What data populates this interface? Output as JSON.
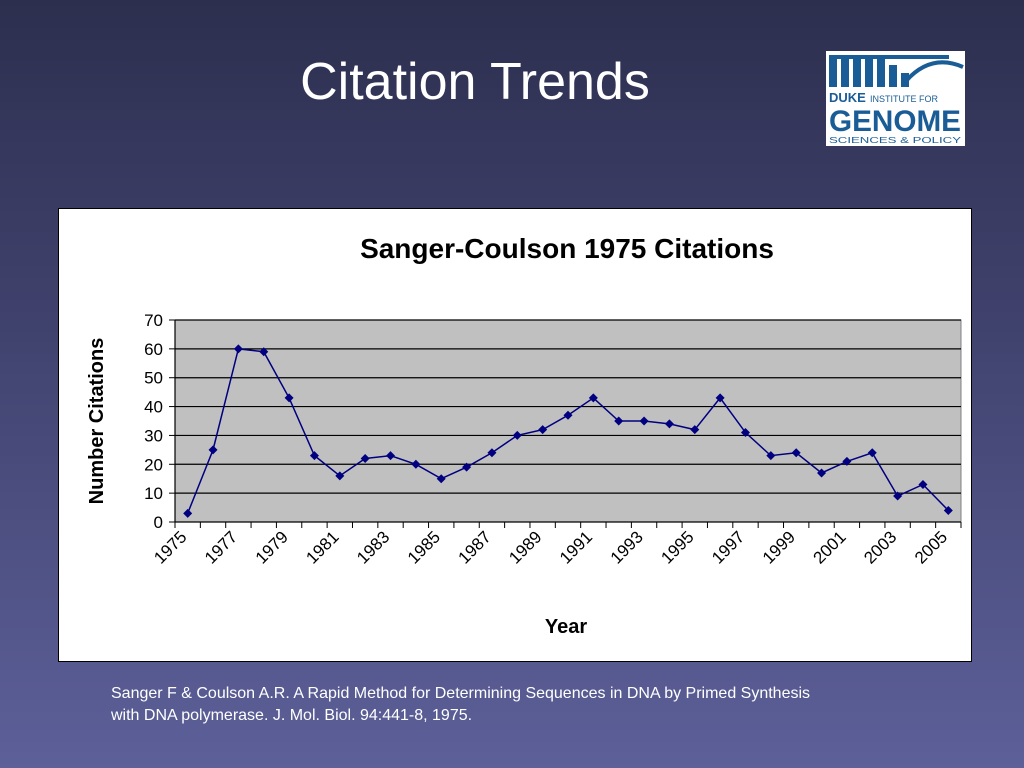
{
  "slide": {
    "title": "Citation Trends",
    "citation_lines": [
      "Sanger F & Coulson A.R. A Rapid Method for Determining Sequences in DNA by Primed Synthesis",
      "with DNA polymerase. J. Mol. Biol. 94:441-8, 1975."
    ]
  },
  "logo": {
    "name": "duke-igsp-logo",
    "line1a": "DUKE",
    "line1b": "INSTITUTE FOR",
    "line2": "GENOME",
    "line3": "SCIENCES & POLICY",
    "color": "#1a5d96"
  },
  "chart_data": {
    "type": "line",
    "title": "Sanger-Coulson 1975 Citations",
    "xlabel": "Year",
    "ylabel": "Number Citations",
    "ylim": [
      0,
      70
    ],
    "yticks": [
      0,
      10,
      20,
      30,
      40,
      50,
      60,
      70
    ],
    "x": [
      1975,
      1976,
      1977,
      1978,
      1979,
      1980,
      1981,
      1982,
      1983,
      1984,
      1985,
      1986,
      1987,
      1988,
      1989,
      1990,
      1991,
      1992,
      1993,
      1994,
      1995,
      1996,
      1997,
      1998,
      1999,
      2000,
      2001,
      2002,
      2003,
      2004,
      2005
    ],
    "xtick_labels": [
      "1975",
      "1977",
      "1979",
      "1981",
      "1983",
      "1985",
      "1987",
      "1989",
      "1991",
      "1993",
      "1995",
      "1997",
      "1999",
      "2001",
      "2003",
      "2005"
    ],
    "series": [
      {
        "values": [
          3,
          25,
          60,
          59,
          43,
          23,
          16,
          22,
          23,
          20,
          15,
          19,
          24,
          30,
          32,
          37,
          43,
          35,
          35,
          34,
          32,
          43,
          31,
          23,
          24,
          17,
          21,
          24,
          9,
          13,
          4
        ]
      }
    ],
    "grid": true,
    "plot_bg": "#c0c0c0",
    "line_color": "#000080",
    "marker": "diamond"
  }
}
